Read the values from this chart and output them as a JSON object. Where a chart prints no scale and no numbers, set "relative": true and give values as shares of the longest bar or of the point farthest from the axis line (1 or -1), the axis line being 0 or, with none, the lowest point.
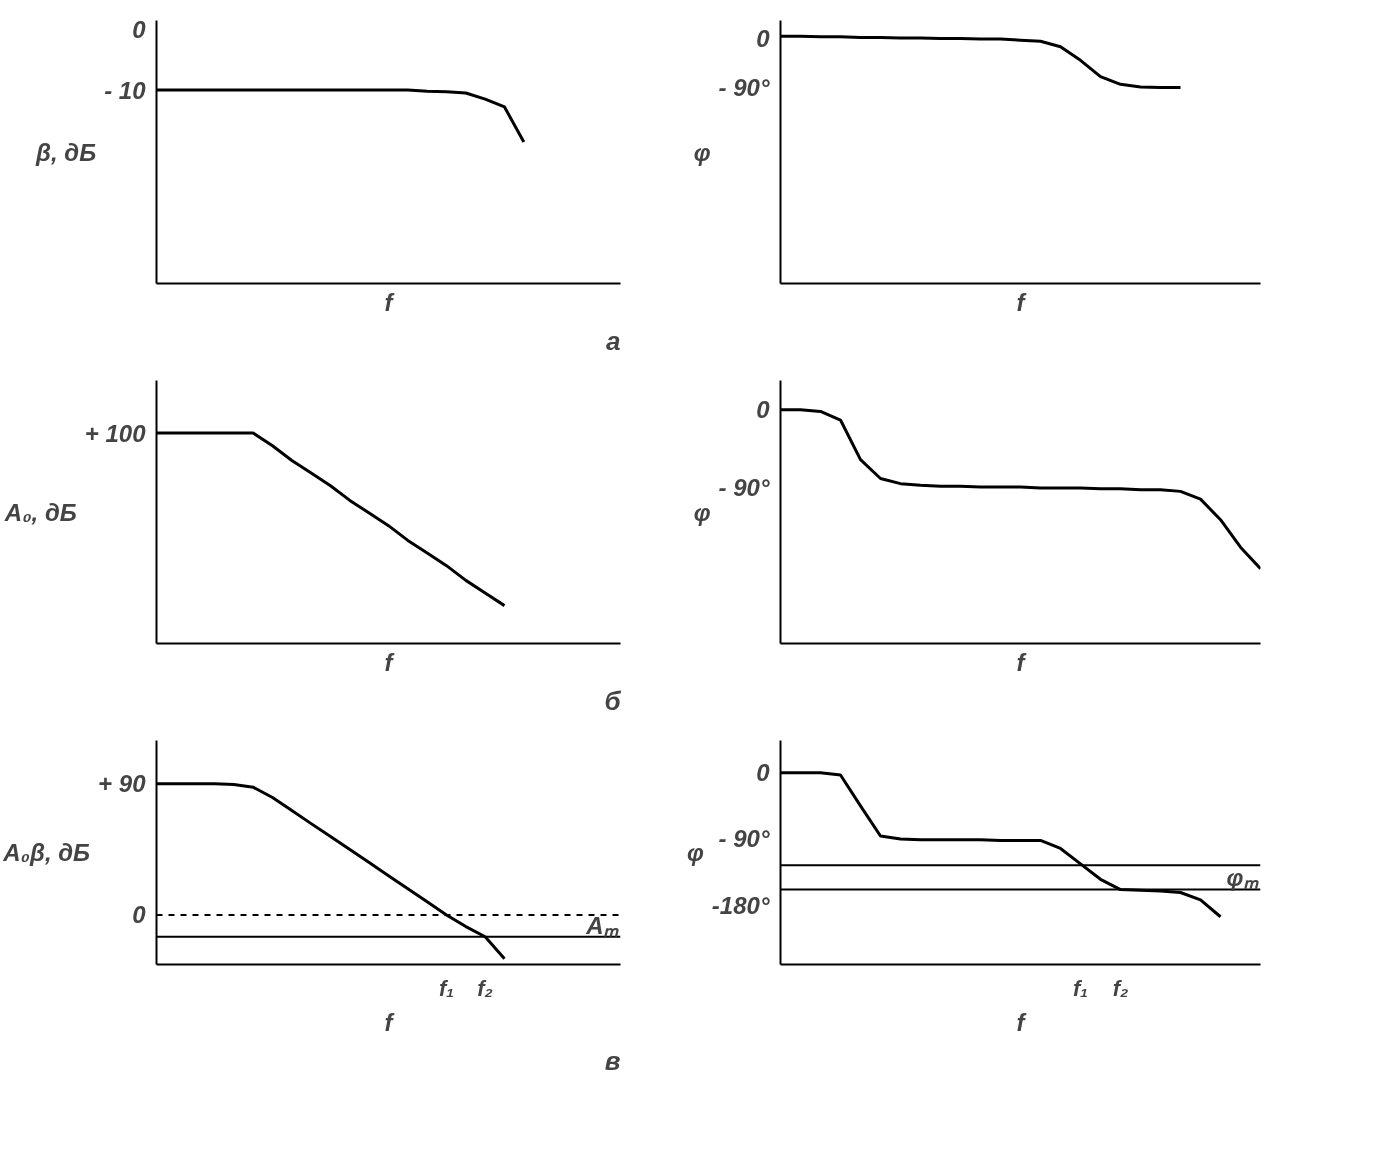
{
  "chart_data": [
    {
      "type": "line",
      "ylabel": "β, дБ",
      "xlabel": "f",
      "tick_labels": "y",
      "grid": false,
      "ylim": [
        -42,
        1.5
      ],
      "yticks": [
        0,
        {
          "value": -10,
          "label": "- 10"
        }
      ],
      "subtitle": "а",
      "categories": [
        null,
        null,
        null,
        null,
        null,
        null,
        null,
        null,
        null,
        null,
        null,
        null,
        null,
        null,
        null,
        null,
        null,
        null,
        null,
        null,
        null,
        null,
        null,
        null,
        null
      ],
      "series": [
        {
          "color": "#000000",
          "values": [
            -10,
            -10,
            -10,
            -10,
            -10,
            -10,
            -10,
            -10,
            -10,
            -10,
            -10,
            -10,
            -10,
            -10,
            -10.2,
            -10.3,
            -10.5,
            -11.5,
            -12.8,
            -18.6,
            null,
            null,
            null,
            null,
            null
          ]
        }
      ]
    },
    {
      "type": "line",
      "ylabel": "φ",
      "xlabel": "f",
      "tick_labels": "y",
      "grid": false,
      "ylim": [
        -449,
        33
      ],
      "yticks": [
        0,
        {
          "value": -90,
          "label": "- 90°"
        }
      ],
      "categories": [
        null,
        null,
        null,
        null,
        null,
        null,
        null,
        null,
        null,
        null,
        null,
        null,
        null,
        null,
        null,
        null,
        null,
        null,
        null,
        null,
        null,
        null,
        null,
        null,
        null
      ],
      "series": [
        {
          "color": "#000000",
          "values": [
            4,
            4,
            3,
            3,
            2,
            2,
            1,
            1,
            0,
            0,
            -1,
            -1,
            -3,
            -5,
            -15,
            -40,
            -70,
            -84,
            -89,
            -90,
            -90,
            null,
            null,
            null,
            null
          ]
        }
      ]
    },
    {
      "type": "line",
      "relative": true,
      "ylabel": "A₀, дБ",
      "xlabel": "f",
      "tick_labels": "y",
      "grid": false,
      "annotations": [
        "+ 100"
      ],
      "subtitle": "б",
      "categories": [
        null,
        null,
        null,
        null,
        null,
        null,
        null,
        null,
        null,
        null,
        null,
        null,
        null,
        null,
        null,
        null,
        null,
        null,
        null,
        null,
        null,
        null,
        null,
        null,
        null
      ],
      "series": [
        {
          "color": "#000000",
          "values": [
            1,
            1,
            1,
            1,
            1,
            1,
            0.94,
            0.87,
            0.81,
            0.75,
            0.68,
            0.62,
            0.56,
            0.49,
            0.43,
            0.37,
            0.3,
            0.24,
            0.18,
            null,
            null,
            null,
            null,
            null,
            null
          ]
        }
      ]
    },
    {
      "type": "line",
      "ylabel": "φ",
      "xlabel": "f",
      "tick_labels": "y",
      "grid": false,
      "ylim": [
        -272,
        34
      ],
      "yticks": [
        0,
        {
          "value": -90,
          "label": "- 90°"
        }
      ],
      "categories": [
        null,
        null,
        null,
        null,
        null,
        null,
        null,
        null,
        null,
        null,
        null,
        null,
        null,
        null,
        null,
        null,
        null,
        null,
        null,
        null,
        null,
        null,
        null,
        null,
        null
      ],
      "series": [
        {
          "color": "#000000",
          "values": [
            0,
            0,
            -2,
            -12,
            -58,
            -80,
            -86,
            -88,
            -89,
            -89,
            -90,
            -90,
            -90,
            -91,
            -91,
            -91,
            -92,
            -92,
            -93,
            -93,
            -95,
            -104,
            -128,
            -160,
            -185
          ]
        }
      ]
    },
    {
      "type": "line",
      "ylabel": "A₀β, дБ",
      "xlabel": "f",
      "grid": false,
      "ylim": [
        -34,
        119.6
      ],
      "yticks": [
        {
          "value": 90,
          "label": "+ 90"
        },
        0
      ],
      "annotations": [
        "Aₘ"
      ],
      "subtitle": "в",
      "ref_lines": [
        {
          "axis": "y",
          "value": 0,
          "line_style": "dashed"
        },
        {
          "axis": "y",
          "value": -15,
          "line_style": "solid"
        }
      ],
      "categories": [
        null,
        null,
        null,
        null,
        null,
        null,
        null,
        null,
        null,
        null,
        null,
        null,
        null,
        null,
        null,
        "f₁",
        null,
        "f₂",
        null,
        null,
        null,
        null,
        null,
        null,
        null
      ],
      "series": [
        {
          "color": "#000000",
          "values": [
            90,
            90,
            90,
            90,
            89.5,
            87.6,
            80.5,
            71.6,
            62.6,
            53.7,
            44.8,
            35.9,
            26.9,
            18,
            9.1,
            0,
            -8,
            -15,
            -30,
            null,
            null,
            null,
            null,
            null,
            null
          ]
        }
      ]
    },
    {
      "type": "line",
      "ylabel": "φ",
      "xlabel": "f",
      "grid": false,
      "ylim": [
        -261,
        44
      ],
      "yticks": [
        0,
        {
          "value": -90,
          "label": "- 90°"
        },
        {
          "value": -180,
          "label": "-180°"
        }
      ],
      "annotations": [
        "φₘ"
      ],
      "ref_lines": [
        {
          "axis": "y",
          "value": -126,
          "line_style": "solid"
        },
        {
          "axis": "y",
          "value": -159,
          "line_style": "solid"
        }
      ],
      "categories": [
        null,
        null,
        null,
        null,
        null,
        null,
        null,
        null,
        null,
        null,
        null,
        null,
        null,
        null,
        null,
        "f₁",
        null,
        "f₂",
        null,
        null,
        null,
        null,
        null,
        null,
        null
      ],
      "series": [
        {
          "color": "#000000",
          "values": [
            0,
            0,
            0,
            -3,
            -45,
            -86,
            -90,
            -91,
            -91,
            -91,
            -91,
            -92,
            -92,
            -92,
            -103,
            -124,
            -145,
            -159,
            -160,
            -161,
            -163,
            -173,
            -196,
            null,
            null
          ]
        }
      ]
    }
  ]
}
